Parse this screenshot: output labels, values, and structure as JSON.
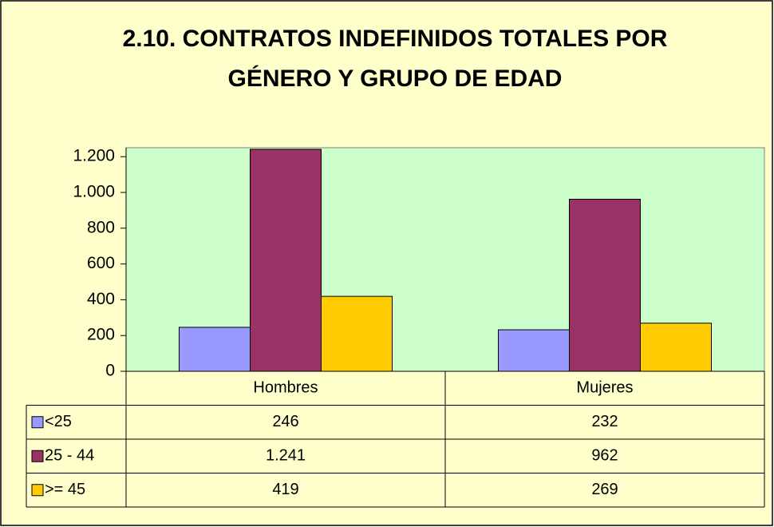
{
  "chart_data": {
    "type": "bar",
    "title": [
      "2.10. CONTRATOS INDEFINIDOS TOTALES POR",
      "GÉNERO Y GRUPO DE EDAD"
    ],
    "categories": [
      "Hombres",
      "Mujeres"
    ],
    "series": [
      {
        "name": "<25",
        "color": "#9999ff",
        "values": [
          246,
          232
        ],
        "value_labels": [
          "246",
          "232"
        ]
      },
      {
        "name": "25 - 44",
        "color": "#993366",
        "values": [
          1241,
          962
        ],
        "value_labels": [
          "1.241",
          "962"
        ]
      },
      {
        "name": ">= 45",
        "color": "#ffcc00",
        "values": [
          419,
          269
        ],
        "value_labels": [
          "419",
          "269"
        ]
      }
    ],
    "ylim": [
      0,
      1250
    ],
    "yticks": [
      0,
      200,
      400,
      600,
      800,
      {
        "value": 1000,
        "label": "1.000"
      },
      {
        "value": 1200,
        "label": "1.200"
      }
    ],
    "background": "#ffffcc",
    "plot_background": "#ccffcc"
  }
}
